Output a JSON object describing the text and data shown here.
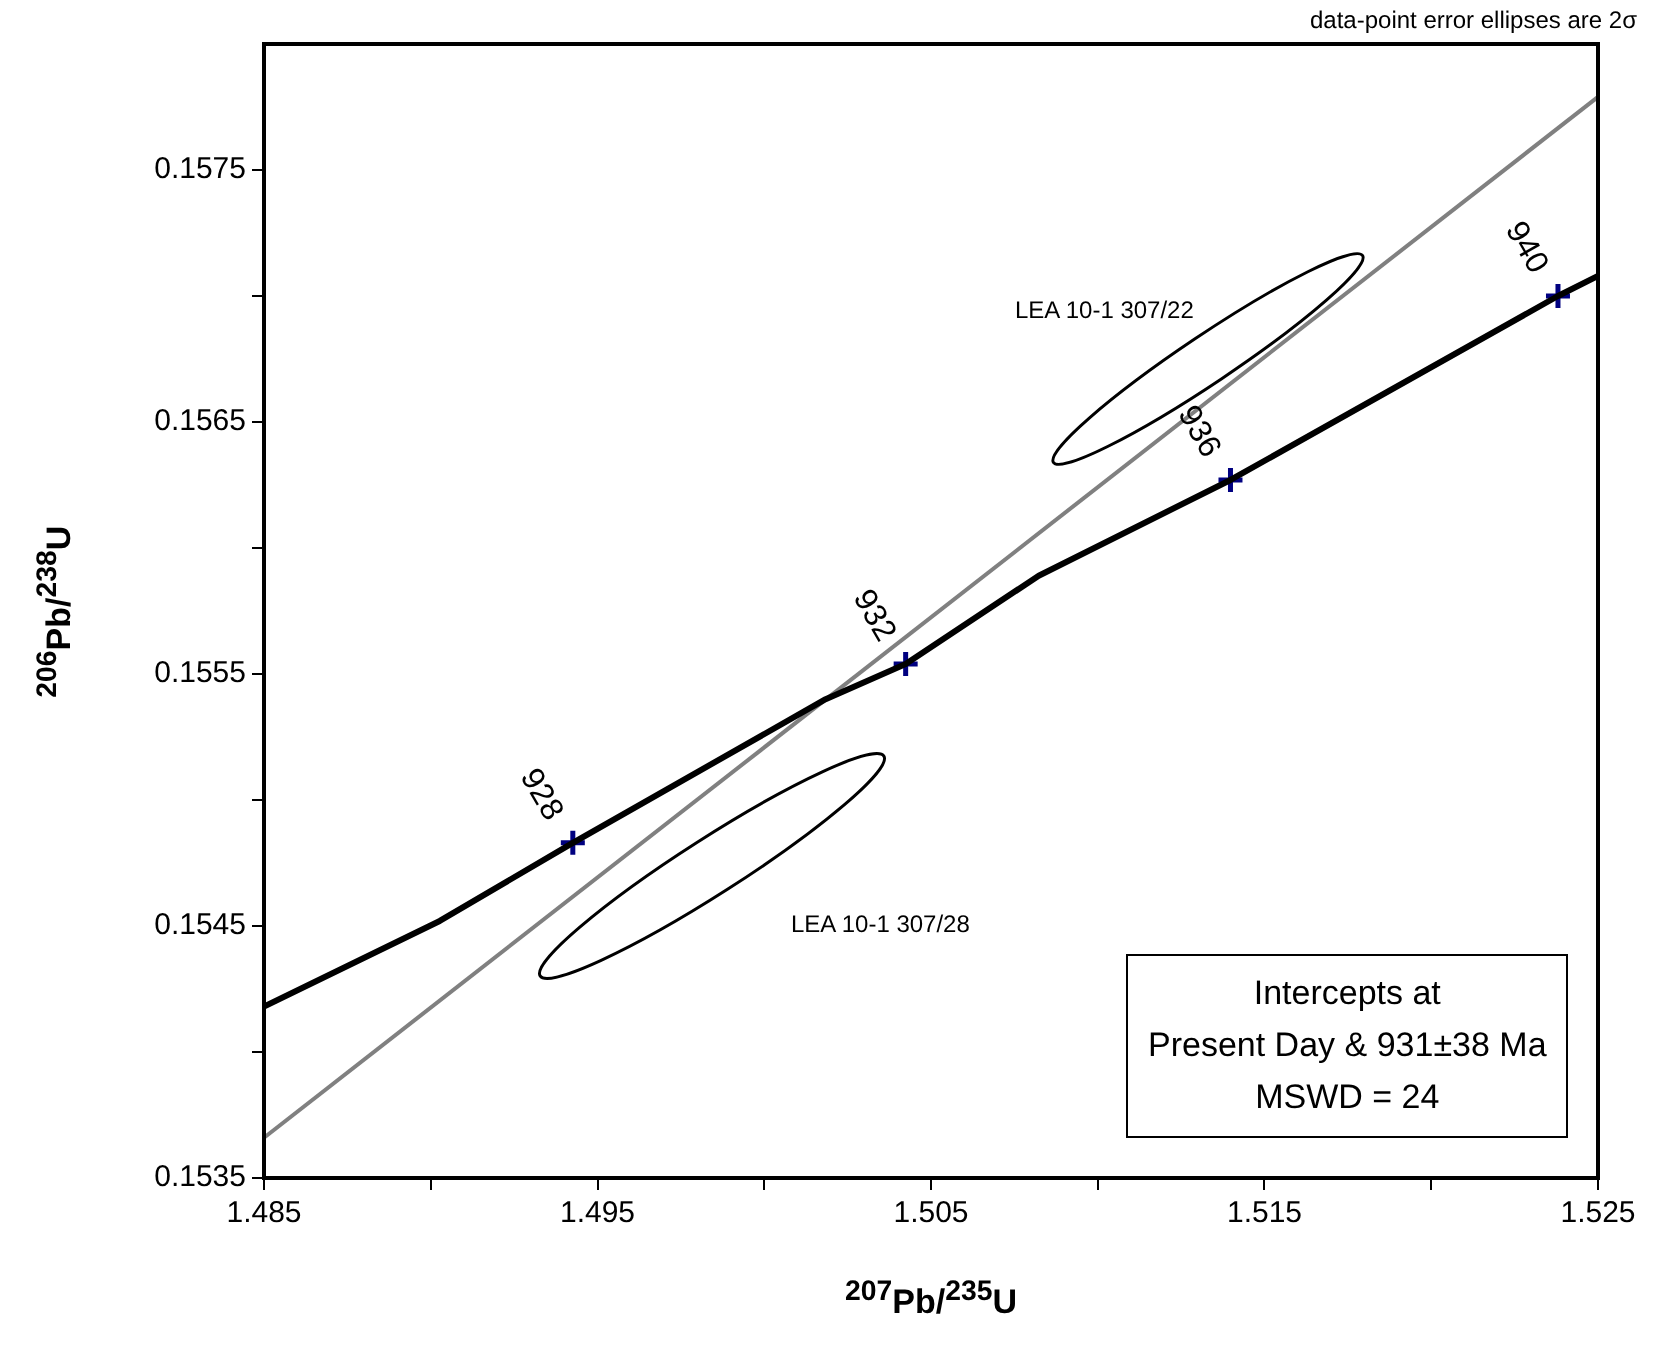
{
  "chart_data": {
    "type": "line",
    "xlabel": "$^{207}$Pb/$^{235}$U",
    "ylabel": "$^{206}$Pb/$^{238}$U",
    "xlim": [
      1.485,
      1.525
    ],
    "xticks": [
      1.485,
      {
        "value": 1.49,
        "label": null
      },
      1.495,
      {
        "value": 1.5,
        "label": null
      },
      1.505,
      {
        "value": 1.51,
        "label": null
      },
      1.515,
      {
        "value": 1.52,
        "label": null
      },
      1.525
    ],
    "ylim": [
      0.1535,
      0.158
    ],
    "yticks": [
      0.1535,
      {
        "value": 0.154,
        "label": null
      },
      0.1545,
      {
        "value": 0.155,
        "label": null
      },
      0.1555,
      {
        "value": 0.156,
        "label": null
      },
      0.1565,
      {
        "value": 0.157,
        "label": null
      },
      0.1575
    ],
    "grid": false,
    "legend": false,
    "marker": "none",
    "line_style": "solid",
    "series": [
      {
        "color": "#000000",
        "x": [
          1.485,
          1.49027,
          1.49426,
          1.50184,
          1.50424,
          1.50823,
          1.51398,
          1.5238,
          1.525
        ],
        "values": [
          0.15418,
          0.15452,
          0.15483,
          0.1554,
          0.15554,
          0.15589,
          0.15627,
          0.157,
          0.15708
        ]
      },
      {
        "color": "#808080",
        "x": [
          1.485,
          1.525
        ],
        "values": [
          0.15366,
          0.15779
        ]
      },
      {
        "type": "scatter",
        "marker": "cross",
        "color": "#000080",
        "x": [
          1.49426,
          1.50424,
          1.51398,
          1.5238
        ],
        "values": [
          0.15483,
          0.15554,
          0.15627,
          0.157
        ]
      }
    ],
    "annotations": [
      "data-point error ellipses are 2σ",
      "Intercepts at\nPresent Day & 931±38 Ma\nMSWD = 24",
      "LEA 10-1 307/28",
      "LEA 10-1 307/22",
      {
        "text": "928",
        "x": 1.49426,
        "y": 0.15483
      },
      {
        "text": "932",
        "x": 1.50424,
        "y": 0.15554
      },
      {
        "text": "936",
        "x": 1.51398,
        "y": 0.15627
      },
      {
        "text": "940",
        "x": 1.5238,
        "y": 0.157
      }
    ]
  }
}
